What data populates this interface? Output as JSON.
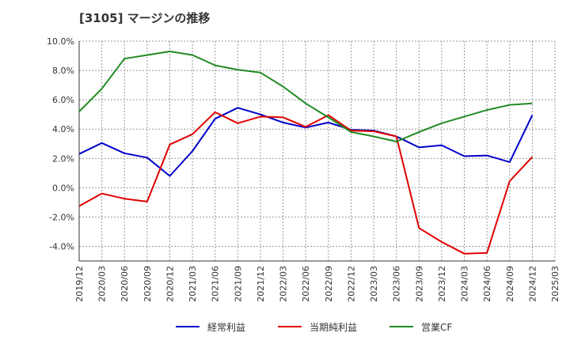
{
  "chart_data": {
    "type": "line",
    "title": "[3105]  マージンの推移",
    "x": [
      "2019/12",
      "2020/03",
      "2020/06",
      "2020/09",
      "2020/12",
      "2021/03",
      "2021/06",
      "2021/09",
      "2021/12",
      "2022/03",
      "2022/06",
      "2022/09",
      "2022/12",
      "2023/03",
      "2023/06",
      "2023/09",
      "2023/12",
      "2024/03",
      "2024/06",
      "2024/09",
      "2024/12",
      "2025/03"
    ],
    "ylim": [
      -5,
      10
    ],
    "yticks": [
      "10.0%",
      "8.0%",
      "6.0%",
      "4.0%",
      "2.0%",
      "0.0%",
      "-2.0%",
      "-4.0%"
    ],
    "ytick_values": [
      10,
      8,
      6,
      4,
      2,
      0,
      -2,
      -4
    ],
    "grid": true,
    "legend_position": "bottom",
    "series": [
      {
        "name": "経常利益",
        "color": "#0000cc",
        "values": [
          2.3,
          3.05,
          2.35,
          2.05,
          0.8,
          2.5,
          4.7,
          5.45,
          5.0,
          4.45,
          4.1,
          4.45,
          3.95,
          3.9,
          3.5,
          2.75,
          2.9,
          2.15,
          2.2,
          1.75,
          4.95,
          null
        ]
      },
      {
        "name": "当期純利益",
        "color": "#e00000",
        "values": [
          -1.25,
          -0.4,
          -0.75,
          -0.95,
          2.95,
          3.65,
          5.15,
          4.4,
          4.85,
          4.8,
          4.15,
          4.95,
          3.9,
          3.85,
          3.5,
          -2.75,
          -3.7,
          -4.5,
          -4.45,
          0.45,
          2.1,
          null
        ]
      },
      {
        "name": "営業CF",
        "color": "#228b22",
        "values": [
          5.2,
          6.75,
          8.8,
          9.05,
          9.3,
          9.05,
          8.35,
          8.05,
          7.85,
          6.9,
          5.75,
          4.8,
          3.8,
          3.5,
          3.15,
          3.8,
          4.4,
          4.85,
          5.3,
          5.65,
          5.75,
          null
        ]
      }
    ]
  }
}
